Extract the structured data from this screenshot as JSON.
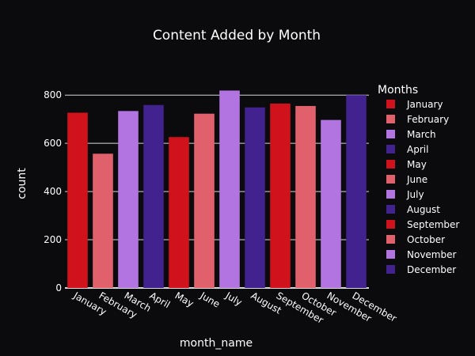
{
  "chart_data": {
    "type": "bar",
    "title": "Content Added by Month",
    "xlabel": "month_name",
    "ylabel": "count",
    "ylim": [
      0,
      850
    ],
    "yticks": [
      0,
      200,
      400,
      600,
      800
    ],
    "grid": true,
    "legend_title": "Months",
    "legend_position": "right",
    "categories": [
      "January",
      "February",
      "March",
      "April",
      "May",
      "June",
      "July",
      "August",
      "September",
      "October",
      "November",
      "December"
    ],
    "values": [
      727,
      557,
      734,
      759,
      626,
      723,
      819,
      749,
      765,
      755,
      697,
      800
    ],
    "colors": [
      "#d0121d",
      "#e0606b",
      "#b174e0",
      "#41228e",
      "#d0121d",
      "#e0606b",
      "#b174e0",
      "#41228e",
      "#d0121d",
      "#e0606b",
      "#b174e0",
      "#41228e"
    ],
    "background_color": "#0b0b0e",
    "text_color": "#ffffff",
    "grid_color": "#d8d8d8"
  }
}
